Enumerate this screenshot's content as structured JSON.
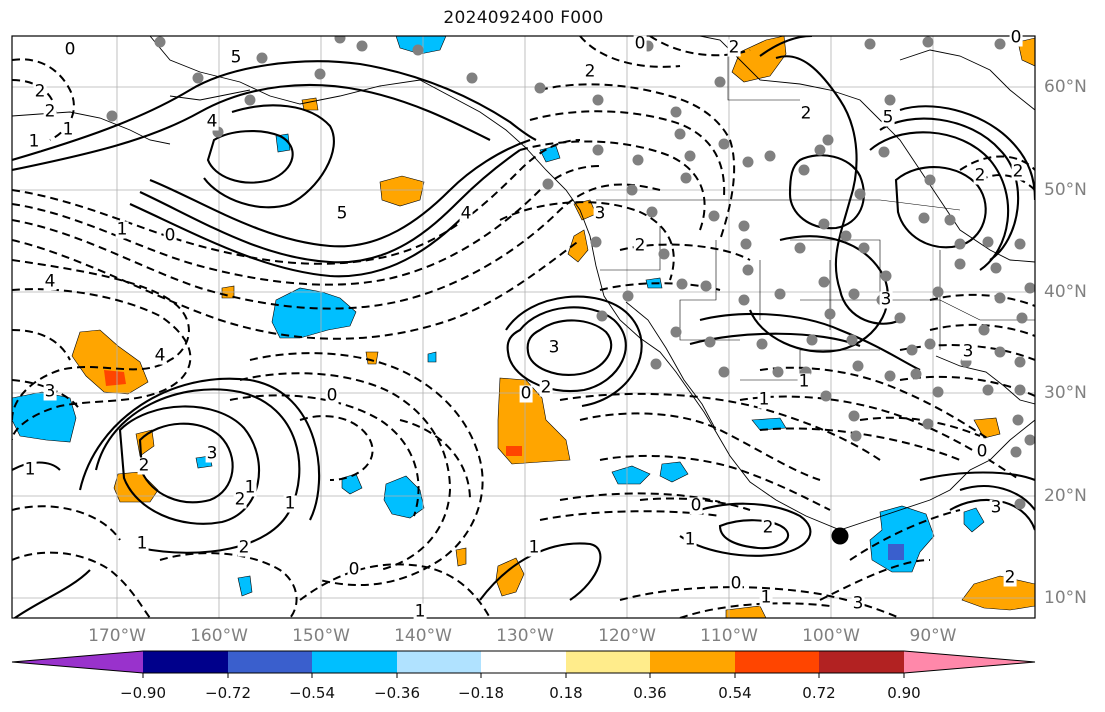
{
  "title": "2024092400 F000",
  "map": {
    "background": "#ffffff",
    "land_line": "#000000",
    "gridline_color": "#b0b0b0",
    "longitude_labels": [
      "170°W",
      "160°W",
      "150°W",
      "140°W",
      "130°W",
      "120°W",
      "110°W",
      "100°W",
      "90°W"
    ],
    "latitude_labels": [
      "60°N",
      "50°N",
      "40°N",
      "30°N",
      "20°N",
      "10°N"
    ],
    "contour_labels": {
      "solid": [
        "5",
        "5",
        "5",
        "3",
        "3",
        "2",
        "3",
        "3",
        "2",
        "2",
        "2",
        "1",
        "2",
        "1"
      ],
      "dashed": [
        "2",
        "2",
        "4",
        "4",
        "4",
        "1",
        "0",
        "3",
        "4",
        "2",
        "2",
        "3",
        "2",
        "0",
        "0",
        "0",
        "1",
        "2",
        "2",
        "3",
        "3",
        "1",
        "0",
        "0",
        "0",
        "1",
        "1",
        "2",
        "1",
        "1",
        "1",
        "0",
        "1",
        "1",
        "0",
        "0",
        "2",
        "1"
      ]
    },
    "station_marker": "#808080",
    "highlighted_point": "#000000"
  },
  "colorbar": {
    "tick_labels": [
      "−0.90",
      "−0.72",
      "−0.54",
      "−0.36",
      "−0.18",
      "0.18",
      "0.36",
      "0.54",
      "0.72",
      "0.90"
    ],
    "colors": [
      "#9932cc",
      "#00008b",
      "#3a5fcd",
      "#00bfff",
      "#b0e2ff",
      "#ffffff",
      "#ffec8b",
      "#ffa500",
      "#ff4500",
      "#b22222",
      "#ff88aa"
    ]
  }
}
